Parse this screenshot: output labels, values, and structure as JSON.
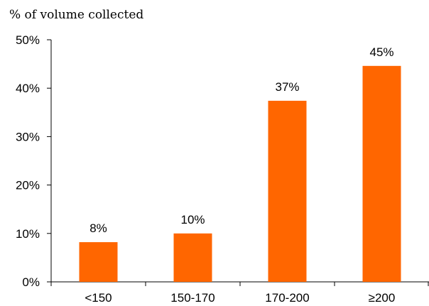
{
  "chart_data": {
    "type": "bar",
    "ylabel": "% of volume collected",
    "xlabel": "",
    "categories": [
      "<150",
      "150-170",
      "170-200",
      "≥200"
    ],
    "values": [
      8.2,
      10.0,
      37.4,
      44.6
    ],
    "data_labels": [
      "8%",
      "10%",
      "37%",
      "45%"
    ],
    "ylim": [
      0,
      50
    ],
    "yticks": [
      0,
      10,
      20,
      30,
      40,
      50
    ],
    "ytick_labels": [
      "0%",
      "10%",
      "20%",
      "30%",
      "40%",
      "50%"
    ],
    "grid": false,
    "legend": "none",
    "bar_color": "#ff6600"
  }
}
